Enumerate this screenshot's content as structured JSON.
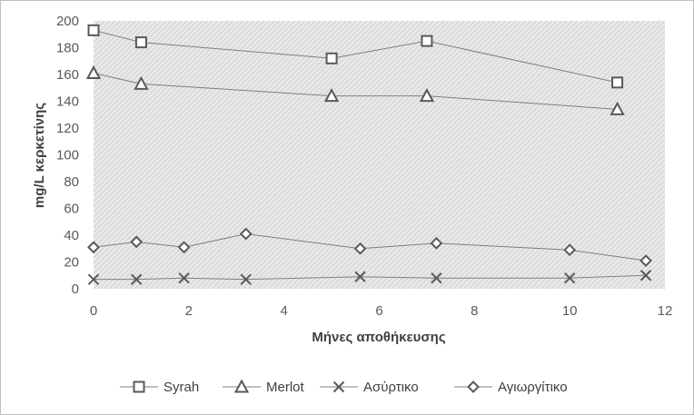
{
  "chart_data": {
    "type": "scatter",
    "title": "",
    "xlabel": "Μήνες αποθήκευσης",
    "ylabel": "mg/L κερκετίνης",
    "xlim": [
      0,
      12
    ],
    "ylim": [
      0,
      200
    ],
    "xticks": [
      0,
      2,
      4,
      6,
      8,
      10,
      12
    ],
    "yticks": [
      0,
      20,
      40,
      60,
      80,
      100,
      120,
      140,
      160,
      180,
      200
    ],
    "grid": false,
    "plot_background": "hatched-gray",
    "legend_position": "bottom",
    "series": [
      {
        "name": "Syrah",
        "marker": "square",
        "color": "#595959",
        "x": [
          0,
          1,
          5,
          7,
          11
        ],
        "y": [
          193,
          184,
          172,
          185,
          154
        ]
      },
      {
        "name": "Merlot",
        "marker": "triangle",
        "color": "#595959",
        "x": [
          0,
          1,
          5,
          7,
          11
        ],
        "y": [
          161,
          153,
          144,
          144,
          134
        ]
      },
      {
        "name": "Ασύρτικο",
        "marker": "x",
        "color": "#595959",
        "x": [
          0,
          0.9,
          1.9,
          3.2,
          5.6,
          7.2,
          10,
          11.6
        ],
        "y": [
          7,
          7,
          8,
          7,
          9,
          8,
          8,
          10
        ]
      },
      {
        "name": "Αγιωργίτικο",
        "marker": "diamond",
        "color": "#595959",
        "x": [
          0,
          0.9,
          1.9,
          3.2,
          5.6,
          7.2,
          10,
          11.6
        ],
        "y": [
          31,
          35,
          31,
          41,
          30,
          34,
          29,
          21
        ]
      }
    ]
  }
}
